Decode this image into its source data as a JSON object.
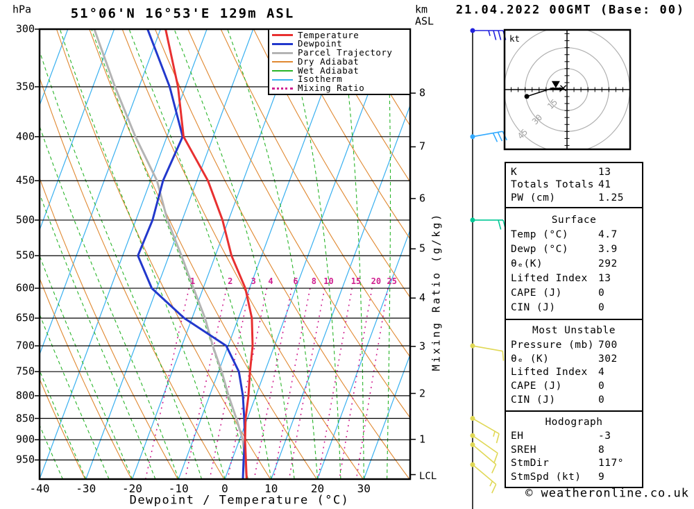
{
  "header": {
    "pressure_unit": "hPa",
    "title": "51°06'N 16°53'E 129m ASL",
    "height_unit_line1": "km",
    "height_unit_line2": "ASL",
    "date_title": "21.04.2022 00GMT (Base: 00)"
  },
  "footer": {
    "xlabel": "Dewpoint / Temperature (°C)",
    "copyright": "© weatheronline.co.uk"
  },
  "legend": [
    {
      "label": "Temperature",
      "color": "#e83030",
      "style": "solid",
      "thickness": 3
    },
    {
      "label": "Dewpoint",
      "color": "#2238cc",
      "style": "solid",
      "thickness": 3
    },
    {
      "label": "Parcel Trajectory",
      "color": "#b4b4b4",
      "style": "solid",
      "thickness": 3
    },
    {
      "label": "Dry Adiabat",
      "color": "#e08830",
      "style": "solid",
      "thickness": 2
    },
    {
      "label": "Wet Adiabat",
      "color": "#28b428",
      "style": "solid",
      "thickness": 2
    },
    {
      "label": "Isotherm",
      "color": "#38b0f0",
      "style": "solid",
      "thickness": 2
    },
    {
      "label": "Mixing Ratio",
      "color": "#d02090",
      "style": "dotted",
      "thickness": 3
    }
  ],
  "axes": {
    "pressure_ticks_hPa": [
      300,
      350,
      400,
      450,
      500,
      550,
      600,
      650,
      700,
      750,
      800,
      850,
      900,
      950
    ],
    "temp_ticks_C": [
      -40,
      -30,
      -20,
      -10,
      0,
      10,
      20,
      30
    ],
    "km_ticks": [
      {
        "km": 1,
        "hPa": 899
      },
      {
        "km": 2,
        "hPa": 795
      },
      {
        "km": 3,
        "hPa": 701
      },
      {
        "km": 4,
        "hPa": 616
      },
      {
        "km": 5,
        "hPa": 540
      },
      {
        "km": 6,
        "hPa": 472
      },
      {
        "km": 7,
        "hPa": 411
      },
      {
        "km": 8,
        "hPa": 356
      }
    ],
    "lcl": {
      "label": "LCL",
      "hPa": 988
    },
    "mixing_ratio_axis_label": "Mixing Ratio (g/kg)"
  },
  "chart_data": {
    "type": "skewt_log_p",
    "pressure_range_hPa": [
      300,
      1000
    ],
    "surface_temp_axis_range_C": [
      -40,
      40
    ],
    "isotherms_C": {
      "min": -110,
      "max": 40,
      "step": 10
    },
    "dry_adiabats_theta_K": {
      "min": 213,
      "max": 453,
      "step": 10
    },
    "wet_adiabats_Tw_C": {
      "min": -70,
      "max": 40,
      "step": 5
    },
    "mixing_ratio_lines_g_kg": [
      1,
      2,
      3,
      4,
      6,
      8,
      10,
      15,
      20,
      25
    ],
    "mixing_ratio_label_row_hPa": 612,
    "series": {
      "temperature_C": [
        [
          300,
          -48.9
        ],
        [
          350,
          -41.6
        ],
        [
          400,
          -36.4
        ],
        [
          450,
          -27.6
        ],
        [
          500,
          -21.3
        ],
        [
          550,
          -16.5
        ],
        [
          600,
          -10.9
        ],
        [
          650,
          -7.1
        ],
        [
          700,
          -4.7
        ],
        [
          750,
          -3.2
        ],
        [
          800,
          -1.6
        ],
        [
          850,
          -0.4
        ],
        [
          900,
          1.2
        ],
        [
          950,
          3.0
        ],
        [
          1000,
          4.7
        ]
      ],
      "dewpoint_C": [
        [
          300,
          -52.8
        ],
        [
          350,
          -43.4
        ],
        [
          400,
          -36.6
        ],
        [
          450,
          -37.3
        ],
        [
          500,
          -36.4
        ],
        [
          550,
          -36.7
        ],
        [
          600,
          -31.1
        ],
        [
          650,
          -21.7
        ],
        [
          700,
          -10.4
        ],
        [
          750,
          -5.6
        ],
        [
          800,
          -2.8
        ],
        [
          850,
          -0.7
        ],
        [
          900,
          1.2
        ],
        [
          950,
          2.5
        ],
        [
          1000,
          3.9
        ]
      ],
      "parcel_C": [
        [
          300,
          -64.3
        ],
        [
          350,
          -55.2
        ],
        [
          400,
          -46.8
        ],
        [
          450,
          -38.6
        ],
        [
          500,
          -33.2
        ],
        [
          550,
          -27.3
        ],
        [
          600,
          -22.1
        ],
        [
          650,
          -17.2
        ],
        [
          700,
          -13.3
        ],
        [
          750,
          -9.3
        ],
        [
          800,
          -5.9
        ],
        [
          850,
          -2.4
        ],
        [
          900,
          0.7
        ],
        [
          950,
          2.8
        ],
        [
          1000,
          4.7
        ]
      ]
    },
    "colors": {
      "temperature": "#e83030",
      "dewpoint": "#2238cc",
      "parcel": "#b4b4b4",
      "dry_adiabat": "#e08830",
      "wet_adiabat": "#28b428",
      "isotherm": "#38b0f0",
      "mixing_ratio": "#d02090",
      "grid": "#000000"
    }
  },
  "wind_barbs": {
    "staff_color": "#000000",
    "levels": [
      {
        "hPa": 300,
        "speed_kt": 35,
        "dir_deg": 90,
        "color": "#2222dd"
      },
      {
        "hPa": 400,
        "speed_kt": 30,
        "dir_deg": 80,
        "color": "#33aaff"
      },
      {
        "hPa": 500,
        "speed_kt": 20,
        "dir_deg": 90,
        "color": "#00c896"
      },
      {
        "hPa": 700,
        "speed_kt": 10,
        "dir_deg": 100,
        "color": "#e0d855"
      },
      {
        "hPa": 850,
        "speed_kt": 15,
        "dir_deg": 120,
        "color": "#e0d855"
      },
      {
        "hPa": 890,
        "speed_kt": 10,
        "dir_deg": 125,
        "color": "#e0d855"
      },
      {
        "hPa": 912,
        "speed_kt": 10,
        "dir_deg": 130,
        "color": "#e0d855"
      },
      {
        "hPa": 962,
        "speed_kt": 15,
        "dir_deg": 130,
        "color": "#e0d855"
      }
    ]
  },
  "hodograph": {
    "unit_label": "kt",
    "rings_kt": [
      15,
      30,
      45
    ],
    "ring_color": "#b0b0b0",
    "ring_label_color": "#a0a0a0",
    "trace_uv_kt": [
      [
        -2.7,
        1.0
      ],
      [
        -3.7,
        0.5
      ],
      [
        -12.0,
        0.5
      ],
      [
        -28.8,
        -4.9
      ]
    ],
    "storm_motion": {
      "dir_deg": 117,
      "speed_kt": 9
    }
  },
  "tables": [
    {
      "rows": [
        [
          "K",
          "13"
        ],
        [
          "Totals Totals",
          "41"
        ],
        [
          "PW (cm)",
          "1.25"
        ]
      ]
    },
    {
      "header": "Surface",
      "rows": [
        [
          "Temp (°C)",
          "4.7"
        ],
        [
          "Dewp (°C)",
          "3.9"
        ],
        [
          "θₑ(K)",
          "292"
        ],
        [
          "Lifted Index",
          "13"
        ],
        [
          "CAPE (J)",
          "0"
        ],
        [
          "CIN (J)",
          "0"
        ]
      ]
    },
    {
      "header": "Most Unstable",
      "rows": [
        [
          "Pressure (mb)",
          "700"
        ],
        [
          "θₑ (K)",
          "302"
        ],
        [
          "Lifted Index",
          "4"
        ],
        [
          "CAPE (J)",
          "0"
        ],
        [
          "CIN (J)",
          "0"
        ]
      ]
    },
    {
      "header": "Hodograph",
      "rows": [
        [
          "EH",
          "-3"
        ],
        [
          "SREH",
          "8"
        ],
        [
          "StmDir",
          "117°"
        ],
        [
          "StmSpd (kt)",
          "9"
        ]
      ]
    }
  ]
}
